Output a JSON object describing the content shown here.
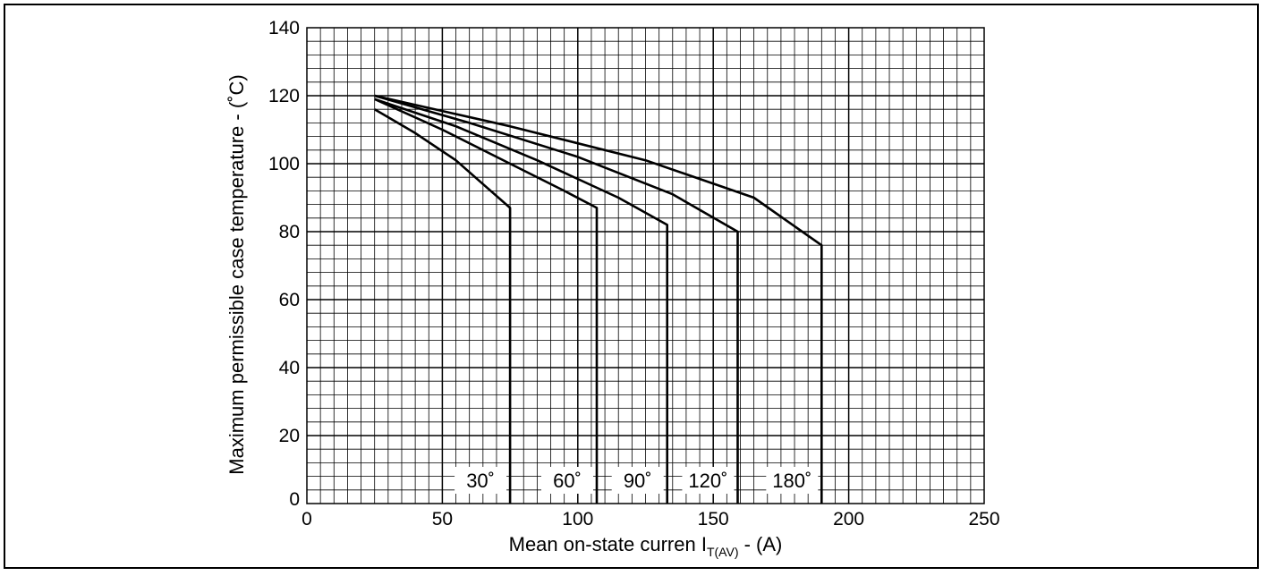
{
  "chart_data": {
    "type": "line",
    "title": "",
    "xlabel_main": "Mean on-state curren I",
    "xlabel_sub": "T(AV)",
    "xlabel_tail": " - (A)",
    "ylabel": "Maximum permissible case temperature - (˚C)",
    "xlim": [
      0,
      250
    ],
    "ylim": [
      0,
      140
    ],
    "x_ticks": [
      0,
      50,
      100,
      150,
      200,
      250
    ],
    "y_ticks": [
      0,
      20,
      40,
      60,
      80,
      100,
      120,
      140
    ],
    "grid": true,
    "series": [
      {
        "name": "30˚",
        "points": [
          [
            25,
            116
          ],
          [
            40,
            109
          ],
          [
            55,
            101
          ],
          [
            65,
            94
          ],
          [
            75,
            87
          ],
          [
            75,
            0
          ]
        ]
      },
      {
        "name": "60˚",
        "points": [
          [
            25,
            119
          ],
          [
            50,
            110
          ],
          [
            75,
            100
          ],
          [
            95,
            92
          ],
          [
            107,
            87
          ],
          [
            107,
            0
          ]
        ]
      },
      {
        "name": "90˚",
        "points": [
          [
            25,
            119
          ],
          [
            55,
            111
          ],
          [
            85,
            101
          ],
          [
            115,
            90
          ],
          [
            133,
            82
          ],
          [
            133,
            0
          ]
        ]
      },
      {
        "name": "120˚",
        "points": [
          [
            25,
            120
          ],
          [
            60,
            112
          ],
          [
            100,
            102
          ],
          [
            135,
            91
          ],
          [
            159,
            80
          ],
          [
            159,
            0
          ]
        ]
      },
      {
        "name": "180˚",
        "points": [
          [
            25,
            120
          ],
          [
            75,
            111
          ],
          [
            125,
            101
          ],
          [
            165,
            90
          ],
          [
            190,
            76
          ],
          [
            190,
            0
          ]
        ]
      }
    ]
  }
}
